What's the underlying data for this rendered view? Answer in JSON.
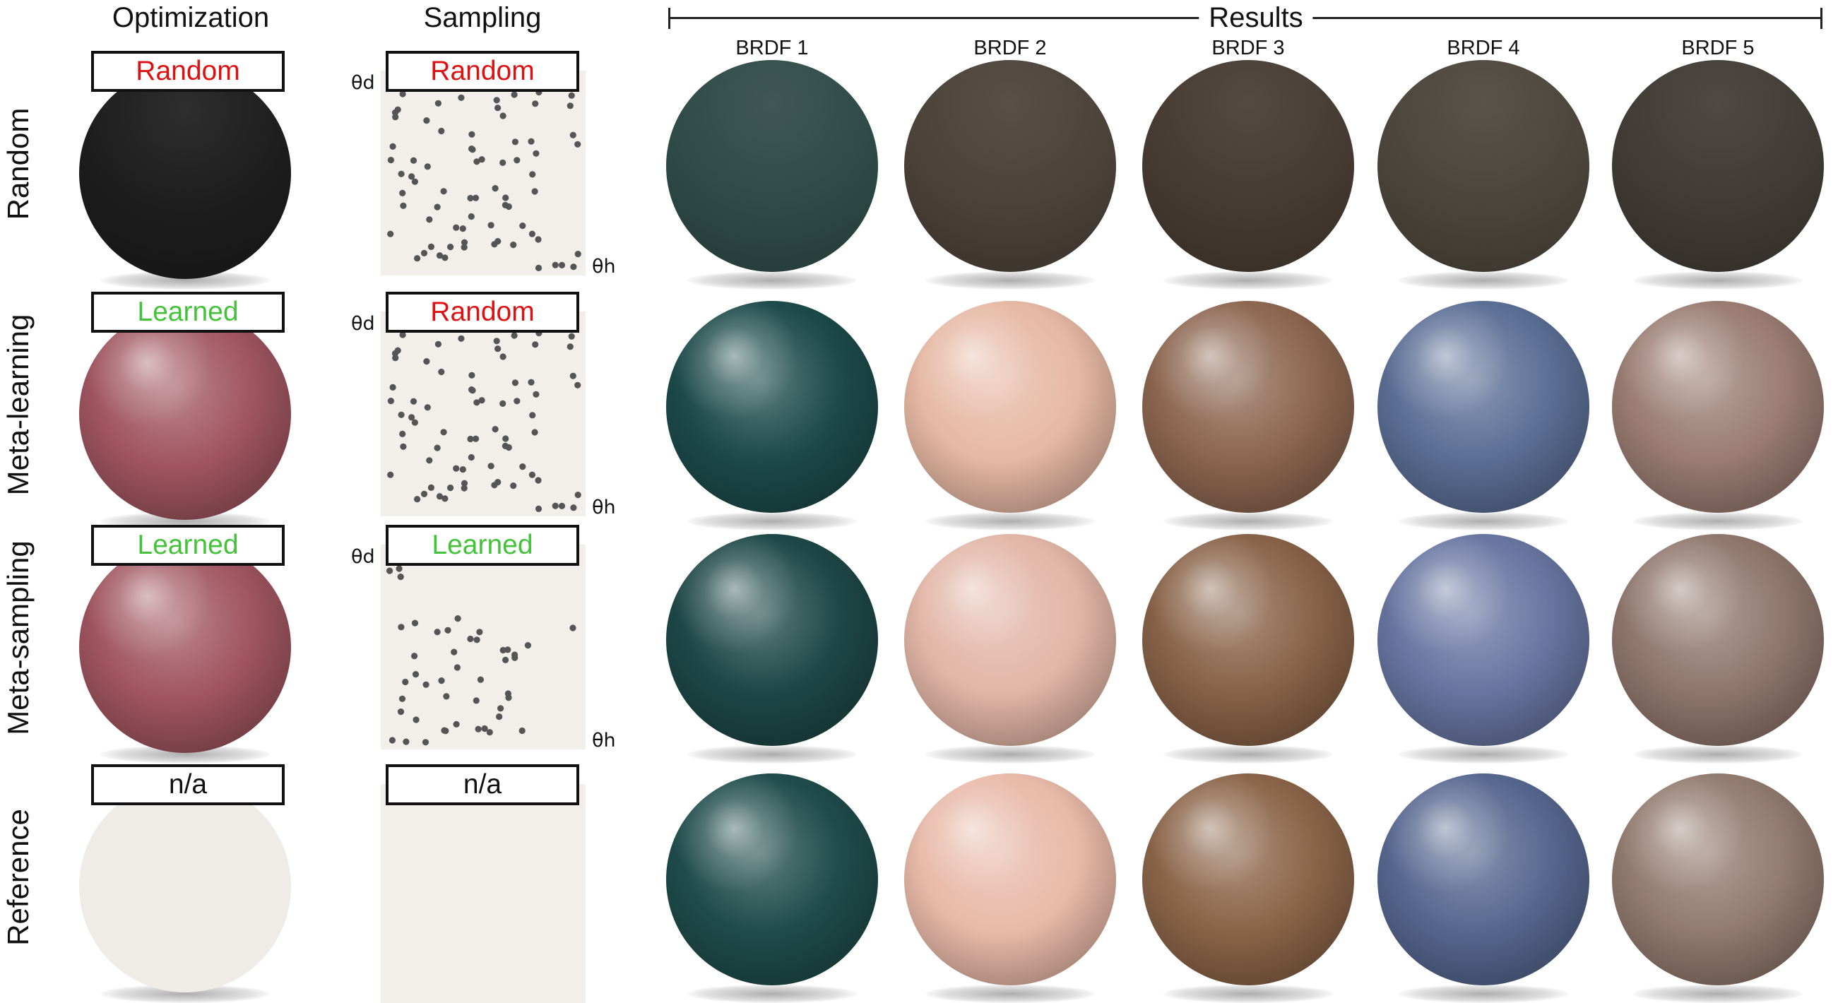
{
  "headers": {
    "optimization": "Optimization",
    "sampling": "Sampling",
    "results": "Results"
  },
  "brdf_labels": [
    "BRDF 1",
    "BRDF 2",
    "BRDF 3",
    "BRDF 4",
    "BRDF 5"
  ],
  "axes": {
    "theta_d": "θd",
    "theta_h": "θh"
  },
  "rows": [
    {
      "label": "Random",
      "optimization_badge": "Random",
      "optimization_badge_kind": "random",
      "sampling_badge": "Random",
      "sampling_badge_kind": "random",
      "optimization_color": "#1c1c1c",
      "results_colors": [
        "#2e4a46",
        "#4a4138",
        "#453a31",
        "#4b443a",
        "#3f3a33"
      ],
      "specular": false
    },
    {
      "label": "Meta-learning",
      "optimization_badge": "Learned",
      "optimization_badge_kind": "learned",
      "sampling_badge": "Random",
      "sampling_badge_kind": "random",
      "optimization_color": "#a05560",
      "results_colors": [
        "#1d4a4a",
        "#e6b8a4",
        "#8c6650",
        "#5b6f95",
        "#9a7c72"
      ],
      "specular": true
    },
    {
      "label": "Meta-sampling",
      "optimization_badge": "Learned",
      "optimization_badge_kind": "learned",
      "sampling_badge": "Learned",
      "sampling_badge_kind": "learned",
      "optimization_color": "#a05560",
      "results_colors": [
        "#1e4747",
        "#e2b6a6",
        "#886248",
        "#6775a0",
        "#8f766c"
      ],
      "specular": true
    },
    {
      "label": "Reference",
      "optimization_badge": "n/a",
      "optimization_badge_kind": "na",
      "sampling_badge": "n/a",
      "sampling_badge_kind": "na",
      "optimization_color": "#efebe6",
      "results_colors": [
        "#1f4c4b",
        "#e8b9a8",
        "#8a6448",
        "#56678f",
        "#927a6e"
      ],
      "specular": true
    }
  ],
  "colors": {
    "random_badge": "#dd1111",
    "learned_badge": "#44c33a",
    "panel_background": "#f2eeea",
    "dot": "#555555"
  }
}
